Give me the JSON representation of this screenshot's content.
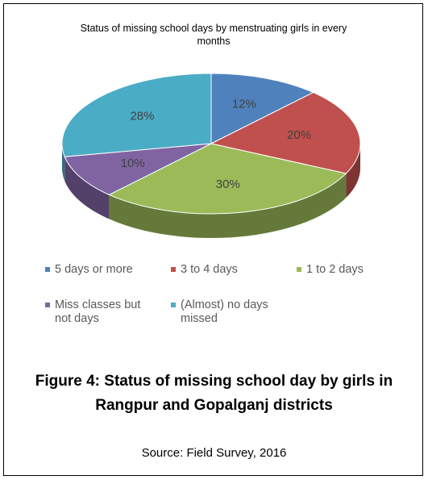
{
  "chart_data": {
    "type": "pie",
    "title": "Status of missing school days by menstruating girls in every months",
    "categories": [
      "5 days or more",
      "3 to 4 days",
      "1 to 2 days",
      "Miss classes but not days",
      "(Almost) no days missed"
    ],
    "values": [
      12,
      20,
      30,
      10,
      28
    ],
    "value_labels": [
      "12%",
      "20%",
      "30%",
      "10%",
      "28%"
    ],
    "colors": [
      "#4f81bd",
      "#c0504d",
      "#9bbb59",
      "#8064a2",
      "#4bacc6"
    ],
    "legend": "bottom"
  },
  "caption": "Figure 4: Status of missing school day by girls in Rangpur and Gopalganj districts",
  "source": "Source: Field Survey, 2016"
}
